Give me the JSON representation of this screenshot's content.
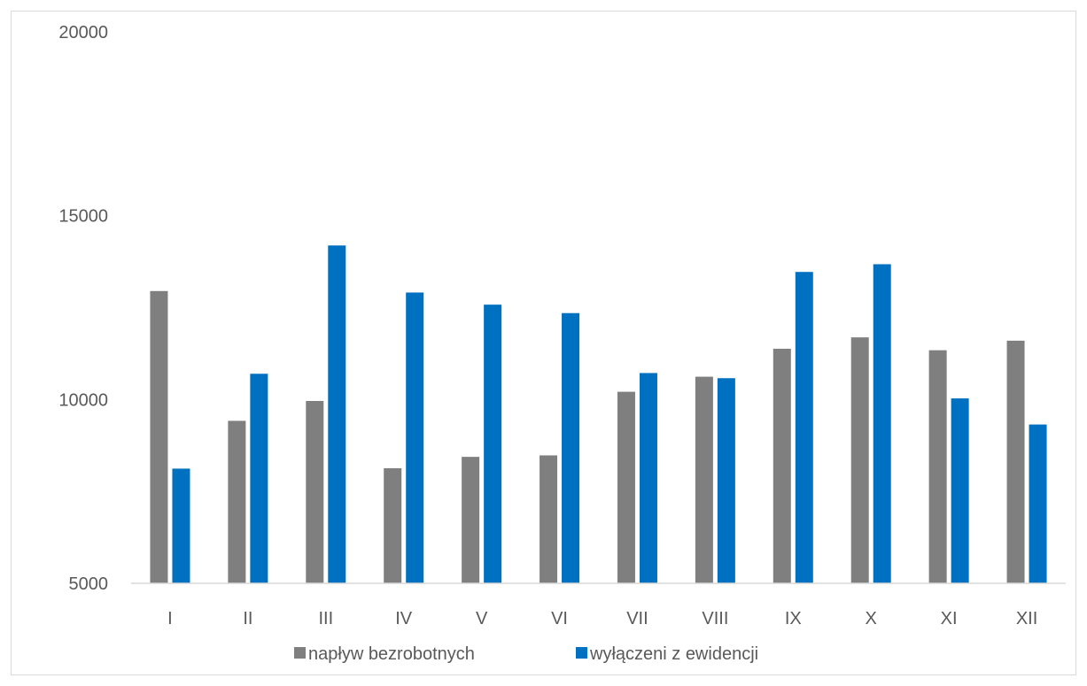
{
  "chart_data": {
    "type": "bar",
    "title": "",
    "xlabel": "",
    "ylabel": "",
    "categories": [
      "I",
      "II",
      "III",
      "IV",
      "V",
      "VI",
      "VII",
      "VIII",
      "IX",
      "X",
      "XI",
      "XII"
    ],
    "series": [
      {
        "name": "napływ bezrobotnych",
        "color": "#7f7f80",
        "values": [
          12950,
          9420,
          9960,
          8130,
          8440,
          8480,
          10210,
          10620,
          11380,
          11690,
          11340,
          11600
        ]
      },
      {
        "name": "wyłączeni z ewidencji",
        "color": "#0070c0",
        "values": [
          8120,
          10700,
          14190,
          12910,
          12580,
          12350,
          10720,
          10580,
          13470,
          13680,
          10030,
          9320
        ]
      }
    ],
    "ylim": [
      5000,
      20000
    ],
    "yticks": [
      5000,
      10000,
      15000,
      20000
    ],
    "grid": false,
    "legend_position": "bottom"
  }
}
